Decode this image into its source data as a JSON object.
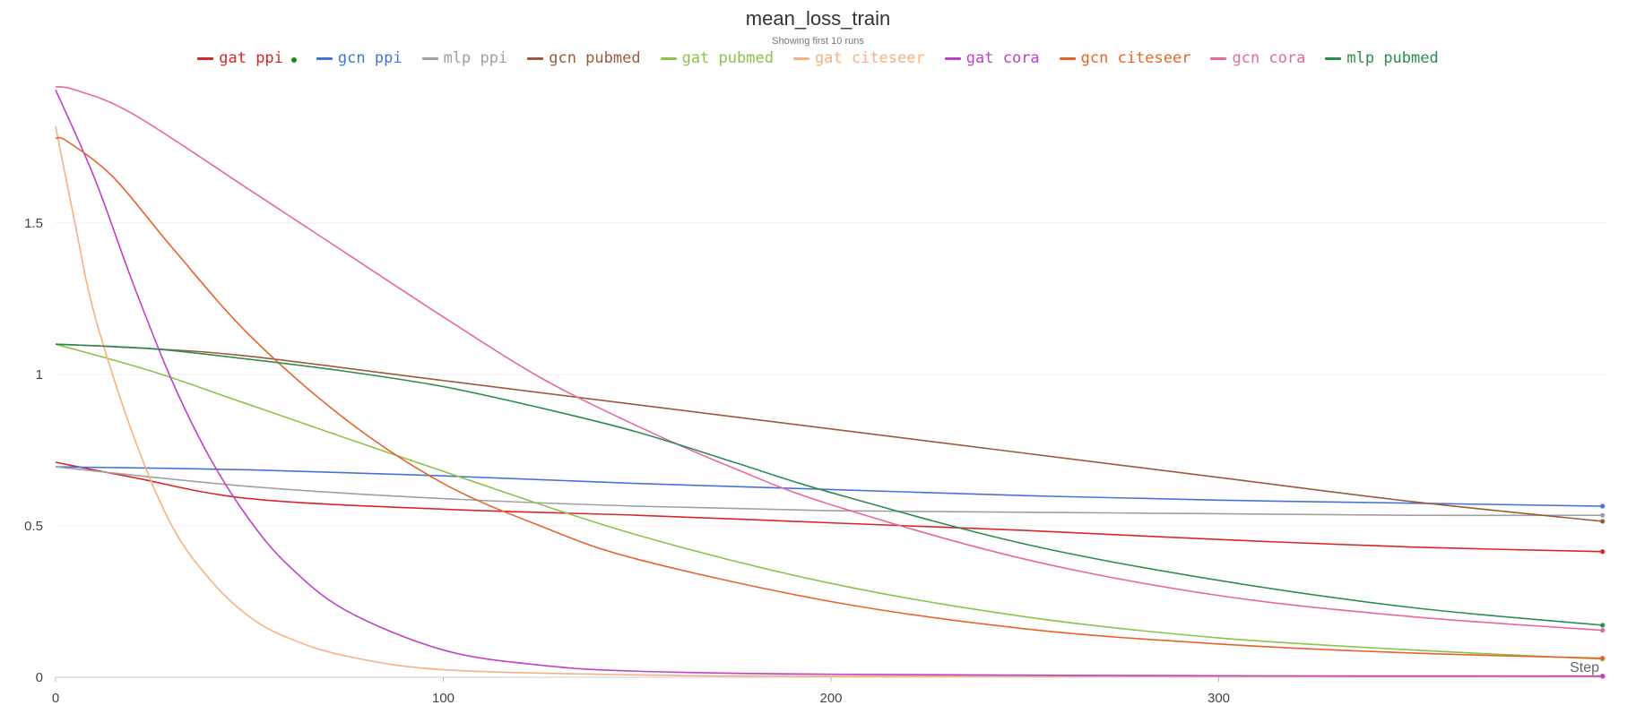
{
  "chart_data": {
    "type": "line",
    "title": "mean_loss_train",
    "subtitle": "Showing first 10 runs",
    "xlabel": "Step",
    "ylabel": "",
    "xlim": [
      0,
      400
    ],
    "ylim": [
      0,
      2.0
    ],
    "xticks": [
      0,
      100,
      200,
      300
    ],
    "yticks": [
      0,
      0.5,
      1,
      1.5
    ],
    "ytick_labels": [
      "0",
      "0.5",
      "1",
      "1.5"
    ],
    "grid": true,
    "legend_position": "top",
    "series": [
      {
        "name": "gat ppi",
        "color": "#d62728",
        "x": [
          0,
          20,
          50,
          100,
          150,
          200,
          250,
          300,
          350,
          399
        ],
        "y": [
          0.71,
          0.66,
          0.59,
          0.555,
          0.535,
          0.51,
          0.485,
          0.455,
          0.43,
          0.415
        ]
      },
      {
        "name": "gcn ppi",
        "color": "#4472dd",
        "x": [
          0,
          50,
          100,
          150,
          200,
          250,
          300,
          350,
          399
        ],
        "y": [
          0.695,
          0.685,
          0.665,
          0.64,
          0.62,
          0.6,
          0.585,
          0.575,
          0.565
        ]
      },
      {
        "name": "mlp ppi",
        "color": "#a0a0a0",
        "x": [
          0,
          50,
          100,
          150,
          200,
          250,
          300,
          350,
          399
        ],
        "y": [
          0.695,
          0.63,
          0.59,
          0.565,
          0.55,
          0.545,
          0.54,
          0.535,
          0.535
        ]
      },
      {
        "name": "gcn pubmed",
        "color": "#9c5a3c",
        "x": [
          0,
          25,
          50,
          100,
          150,
          200,
          250,
          300,
          350,
          399
        ],
        "y": [
          1.1,
          1.085,
          1.06,
          0.98,
          0.9,
          0.82,
          0.74,
          0.66,
          0.58,
          0.515
        ]
      },
      {
        "name": "gat pubmed",
        "color": "#8bc34a",
        "x": [
          0,
          25,
          50,
          100,
          150,
          200,
          250,
          300,
          350,
          399
        ],
        "y": [
          1.1,
          1.01,
          0.9,
          0.68,
          0.47,
          0.31,
          0.2,
          0.13,
          0.09,
          0.06
        ]
      },
      {
        "name": "gat citeseer",
        "color": "#f4b183",
        "x": [
          0,
          5,
          10,
          20,
          30,
          40,
          50,
          60,
          75,
          100,
          150,
          200,
          399
        ],
        "y": [
          1.82,
          1.5,
          1.2,
          0.8,
          0.5,
          0.32,
          0.2,
          0.13,
          0.07,
          0.025,
          0.008,
          0.004,
          0.002
        ]
      },
      {
        "name": "gat cora",
        "color": "#c040c8",
        "x": [
          0,
          10,
          20,
          30,
          40,
          50,
          60,
          75,
          100,
          125,
          150,
          200,
          300,
          399
        ],
        "y": [
          1.94,
          1.65,
          1.3,
          0.98,
          0.72,
          0.52,
          0.37,
          0.22,
          0.09,
          0.04,
          0.02,
          0.01,
          0.005,
          0.004
        ]
      },
      {
        "name": "gcn citeseer",
        "color": "#e8632a",
        "x": [
          0,
          3,
          15,
          30,
          50,
          75,
          100,
          125,
          150,
          200,
          250,
          300,
          350,
          399
        ],
        "y": [
          1.78,
          1.77,
          1.65,
          1.42,
          1.13,
          0.85,
          0.64,
          0.5,
          0.39,
          0.25,
          0.16,
          0.11,
          0.08,
          0.063
        ]
      },
      {
        "name": "gcn cora",
        "color": "#e8689a",
        "x": [
          0,
          5,
          20,
          50,
          75,
          100,
          125,
          150,
          175,
          200,
          250,
          300,
          350,
          399
        ],
        "y": [
          1.95,
          1.94,
          1.86,
          1.61,
          1.4,
          1.19,
          0.99,
          0.83,
          0.69,
          0.57,
          0.39,
          0.27,
          0.2,
          0.155
        ]
      },
      {
        "name": "mlp pubmed",
        "color": "#2e8b50",
        "x": [
          0,
          25,
          50,
          75,
          100,
          125,
          150,
          175,
          200,
          250,
          300,
          350,
          399
        ],
        "y": [
          1.1,
          1.085,
          1.05,
          1.01,
          0.96,
          0.89,
          0.81,
          0.71,
          0.61,
          0.44,
          0.32,
          0.23,
          0.172
        ]
      }
    ]
  },
  "highlight_dot_color": "#1a8a1a"
}
